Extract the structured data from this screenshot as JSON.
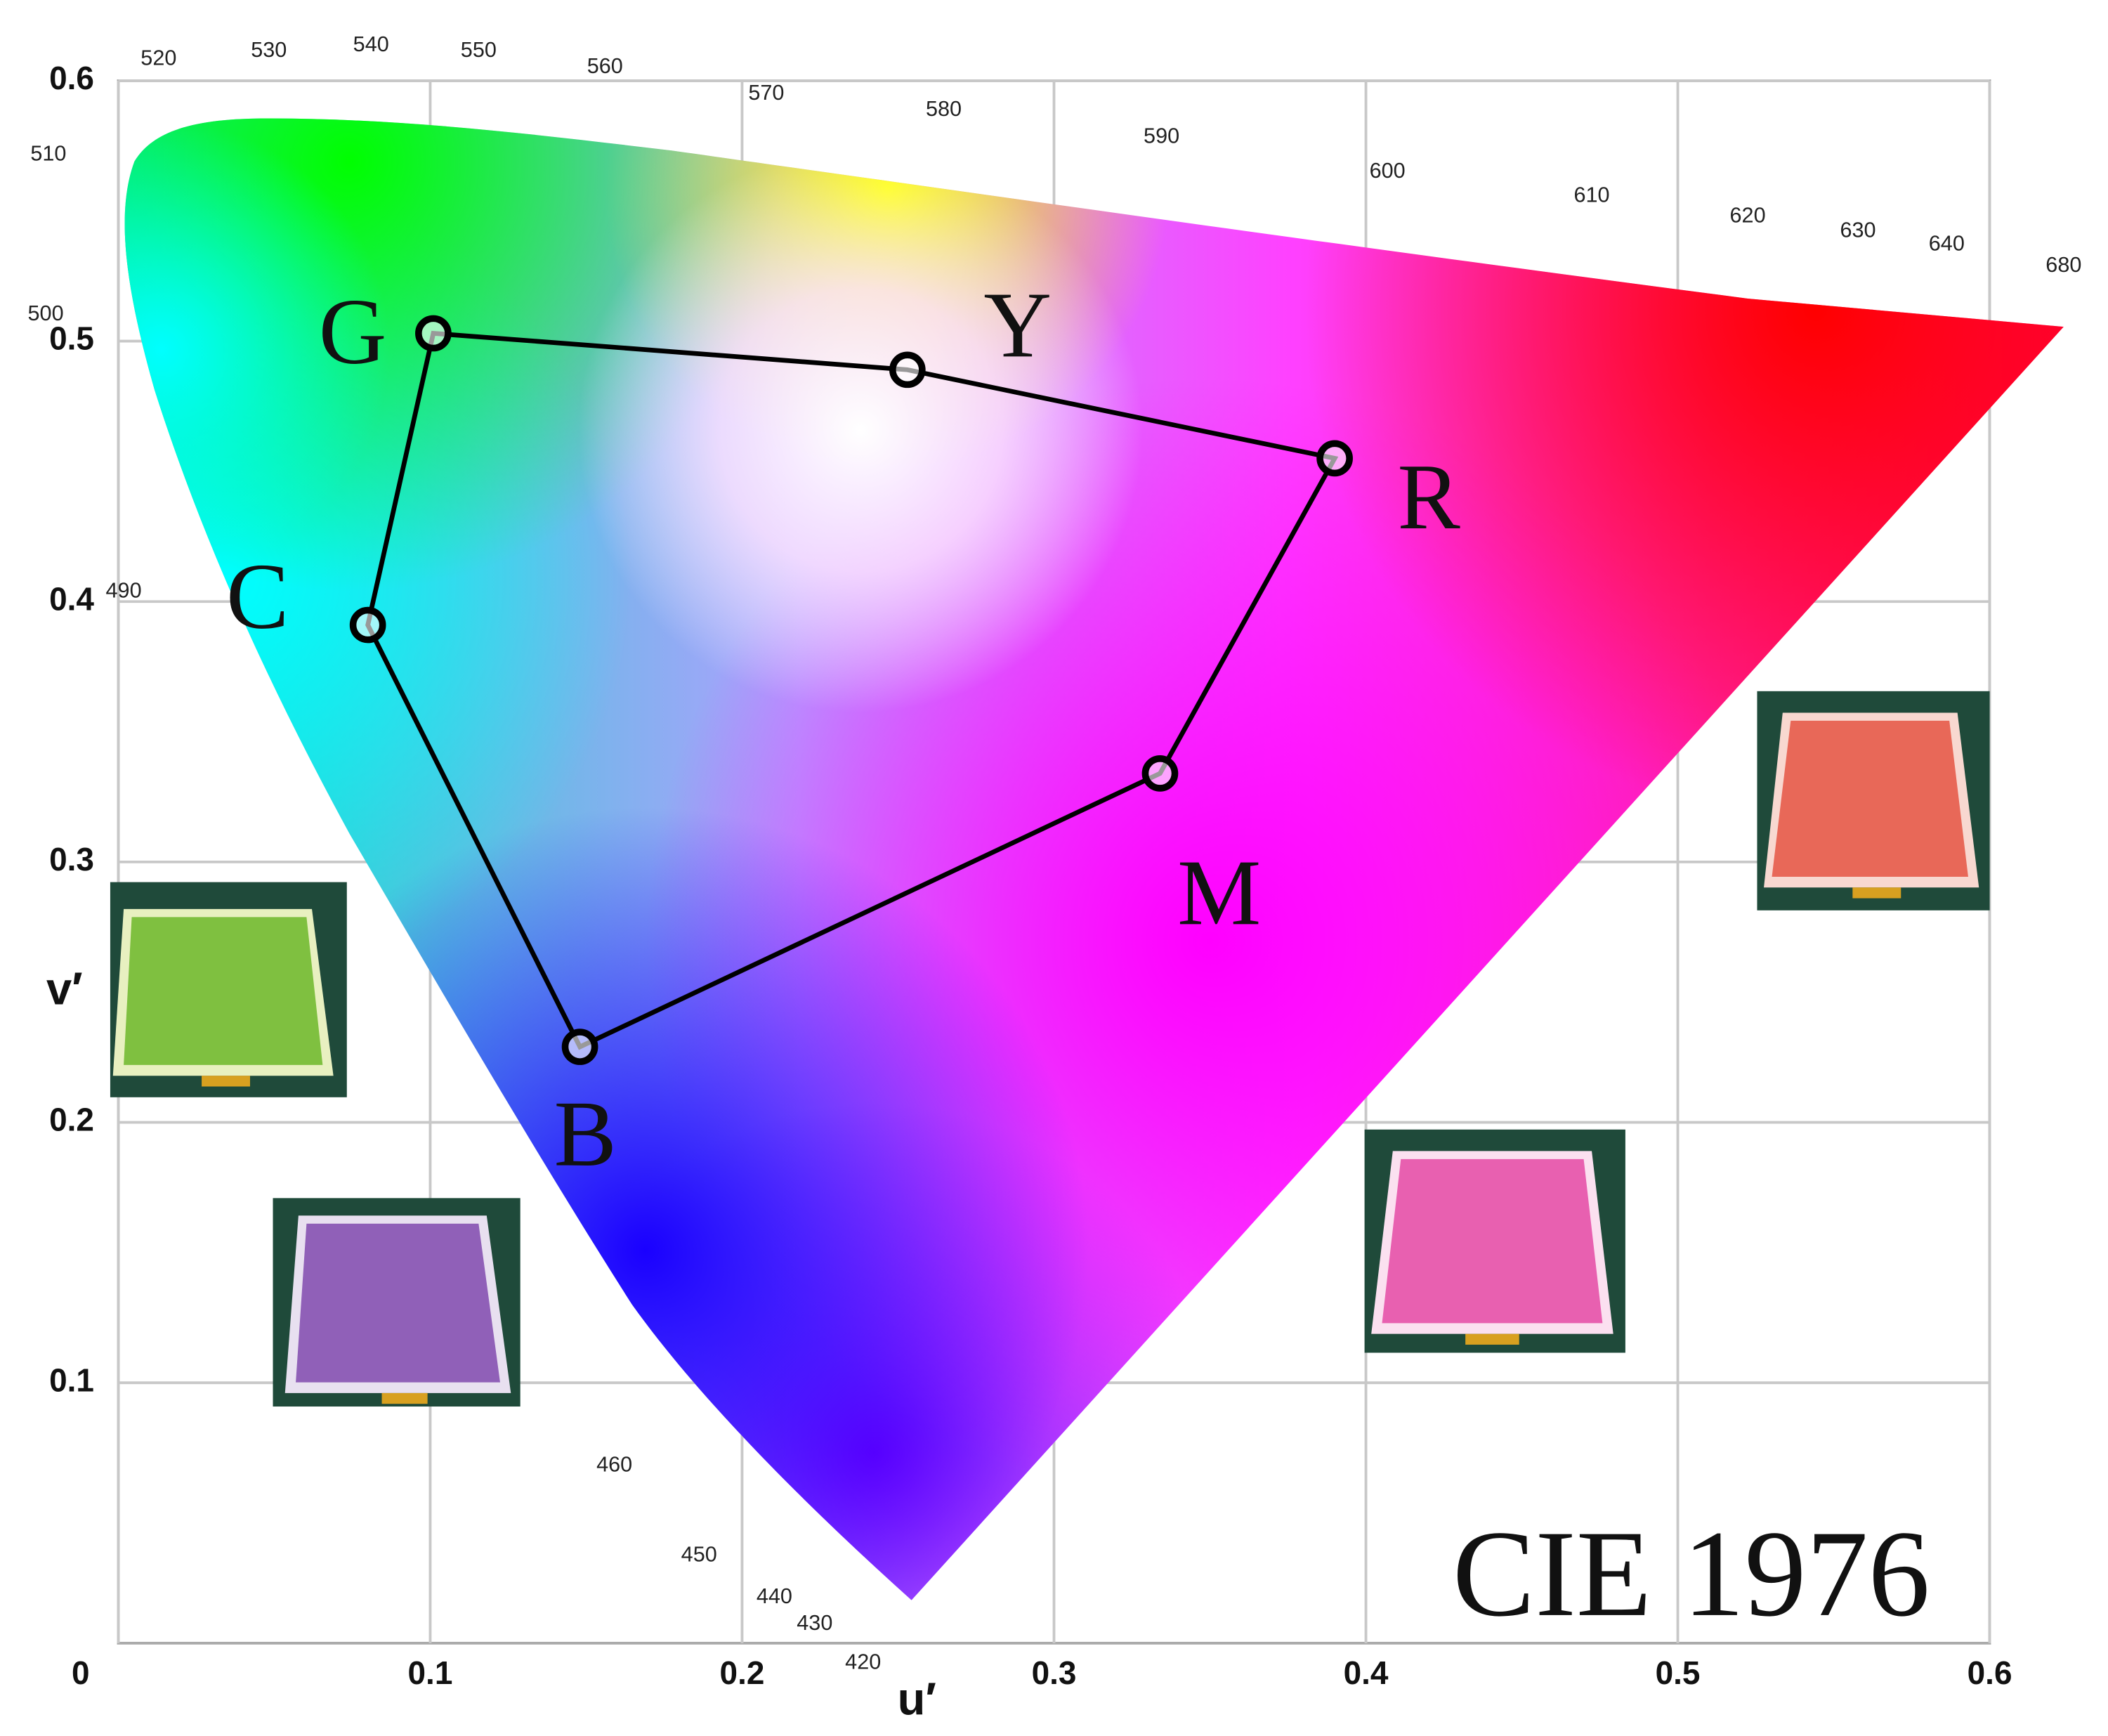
{
  "chart_data": {
    "type": "scatter",
    "title": "CIE 1976",
    "x_label": "u′",
    "y_label": "v′",
    "x": [
      0.101,
      0.253,
      0.39,
      0.334,
      0.148,
      0.08
    ],
    "values": [
      0.503,
      0.489,
      0.455,
      0.334,
      0.229,
      0.391
    ],
    "point_labels": [
      "G",
      "Y",
      "R",
      "M",
      "B",
      "C"
    ],
    "xlim": [
      0,
      0.6
    ],
    "ylim": [
      0,
      0.6
    ],
    "xticks": [
      0,
      0.1,
      0.2,
      0.3,
      0.4,
      0.5,
      0.6
    ],
    "yticks": [
      0.1,
      0.2,
      0.3,
      0.4,
      0.5,
      0.6
    ],
    "grid": true,
    "marker_color": "#000000",
    "wavelength_labels": [
      "520",
      "530",
      "540",
      "550",
      "560",
      "570",
      "580",
      "590",
      "600",
      "610",
      "620",
      "630",
      "640",
      "680",
      "510",
      "500",
      "490",
      "460",
      "450",
      "440",
      "430",
      "420"
    ]
  }
}
